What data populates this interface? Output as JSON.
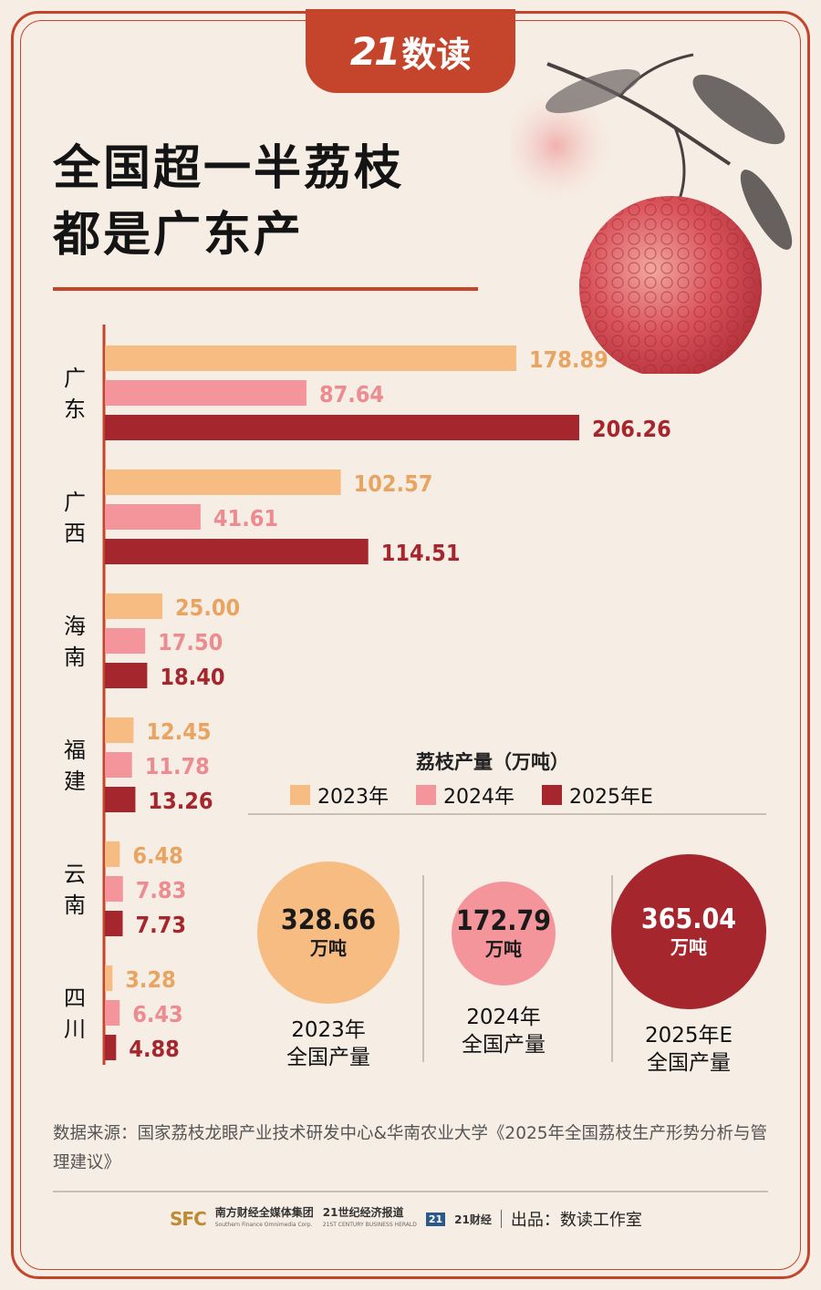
{
  "brand": {
    "number": "21",
    "name": "数读"
  },
  "title_lines": [
    "全国超一半荔枝",
    "都是广东产"
  ],
  "chart_data": {
    "type": "bar",
    "orientation": "horizontal",
    "categories": [
      "广东",
      "广西",
      "海南",
      "福建",
      "云南",
      "四川"
    ],
    "series": [
      {
        "name": "2023年",
        "color": "#f6bc82",
        "values": [
          178.89,
          102.57,
          25.0,
          12.45,
          6.48,
          3.28
        ],
        "labels": [
          "178.89",
          "102.57",
          "25.00",
          "12.45",
          "6.48",
          "3.28"
        ]
      },
      {
        "name": "2024年",
        "color": "#f3959a",
        "values": [
          87.64,
          41.61,
          17.5,
          11.78,
          7.83,
          6.43
        ],
        "labels": [
          "87.64",
          "41.61",
          "17.50",
          "11.78",
          "7.83",
          "6.43"
        ]
      },
      {
        "name": "2025年E",
        "color": "#a5262c",
        "values": [
          206.26,
          114.51,
          18.4,
          13.26,
          7.73,
          4.88
        ],
        "labels": [
          "206.26",
          "114.51",
          "18.40",
          "13.26",
          "7.73",
          "4.88"
        ]
      }
    ],
    "legend_title": "荔枝产量（万吨）",
    "label_colors": [
      "#e8a460",
      "#ec8b90",
      "#a5262c"
    ]
  },
  "totals": [
    {
      "value": "328.66",
      "unit": "万吨",
      "year": "2023年",
      "label": "全国产量",
      "color": "#f6bc82",
      "text_color": "#1a1a1a"
    },
    {
      "value": "172.79",
      "unit": "万吨",
      "year": "2024年",
      "label": "全国产量",
      "color": "#f3959a",
      "text_color": "#1a1a1a"
    },
    {
      "value": "365.04",
      "unit": "万吨",
      "year": "2025年E",
      "label": "全国产量",
      "color": "#a5262c",
      "text_color": "#ffffff"
    }
  ],
  "source": "数据来源：国家荔枝龙眼产业技术研发中心&华南农业大学《2025年全国荔枝生产形势分析与管理建议》",
  "footer": {
    "sfc": "SFC",
    "sfc_name": "南方财经全媒体集团",
    "sfc_sub": "Southern Finance Omnimedia Corp.",
    "herald_name": "21世纪经济报道",
    "herald_sub": "21ST CENTURY BUSINESS HERALD",
    "badge": "21",
    "caijing": "21财经",
    "publisher": "出品：数读工作室"
  }
}
